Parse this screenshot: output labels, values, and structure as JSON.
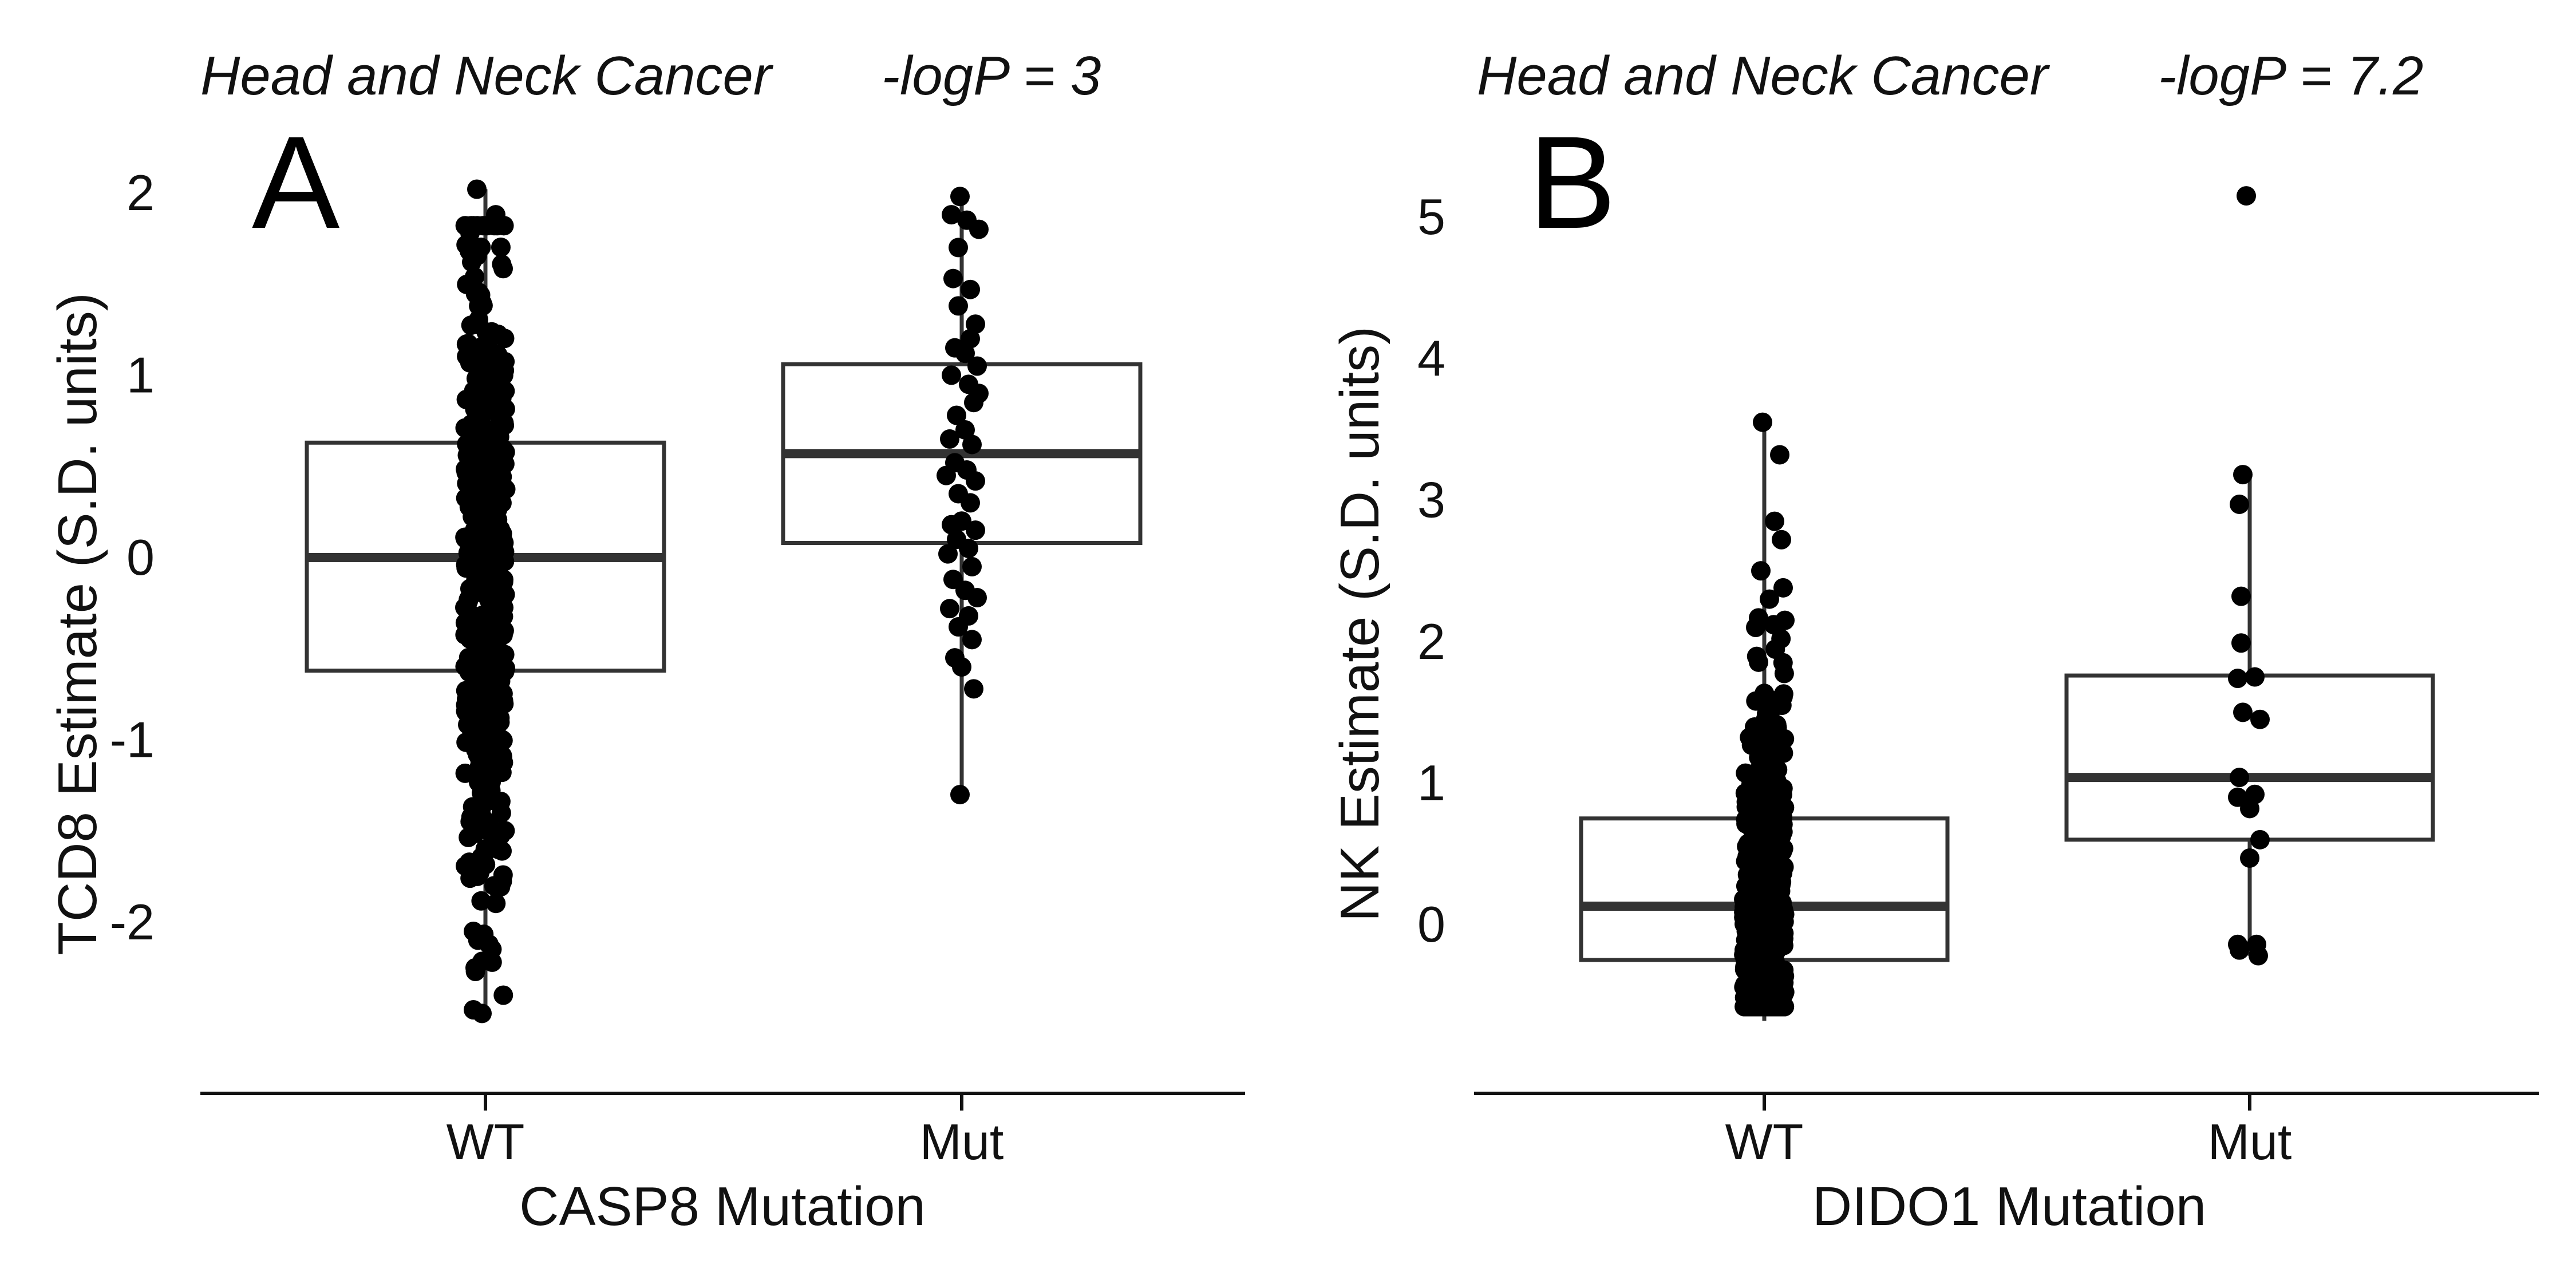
{
  "chart_data": [
    {
      "type": "box",
      "panel_label": "A",
      "title": "Head and Neck Cancer",
      "stat_label": "-logP = 3",
      "xlabel": "CASP8 Mutation",
      "ylabel": "TCD8 Estimate (S.D. units)",
      "categories": [
        "WT",
        "Mut"
      ],
      "y_ticks": [
        -2,
        -1,
        0,
        1,
        2
      ],
      "ylim": [
        -2.75,
        2.1
      ],
      "groups": [
        {
          "name": "WT",
          "box": {
            "whisker_low": -2.5,
            "q1": -0.62,
            "median": 0.0,
            "q3": 0.63,
            "whisker_high": 2.02
          },
          "n_points": 480,
          "extreme_points": [
            [
              -0.05,
              2.02
            ],
            [
              0.06,
              1.88
            ],
            [
              -0.09,
              1.78
            ],
            [
              -0.08,
              1.62
            ],
            [
              0.05,
              -1.8
            ],
            [
              -0.07,
              -2.05
            ],
            [
              0.02,
              -2.12
            ],
            [
              -0.06,
              -2.25
            ],
            [
              -0.07,
              -2.48
            ],
            [
              -0.02,
              -2.5
            ]
          ]
        },
        {
          "name": "Mut",
          "box": {
            "whisker_low": -1.3,
            "q1": 0.08,
            "median": 0.57,
            "q3": 1.06,
            "whisker_high": 1.98
          },
          "points": [
            [
              -0.01,
              1.98
            ],
            [
              -0.06,
              1.88
            ],
            [
              0.03,
              1.85
            ],
            [
              0.1,
              1.8
            ],
            [
              -0.02,
              1.7
            ],
            [
              -0.05,
              1.53
            ],
            [
              0.05,
              1.47
            ],
            [
              -0.02,
              1.38
            ],
            [
              0.08,
              1.28
            ],
            [
              0.05,
              1.2
            ],
            [
              -0.04,
              1.15
            ],
            [
              0.02,
              1.12
            ],
            [
              0.09,
              1.05
            ],
            [
              -0.06,
              1.0
            ],
            [
              0.04,
              0.95
            ],
            [
              0.1,
              0.9
            ],
            [
              0.07,
              0.85
            ],
            [
              -0.03,
              0.78
            ],
            [
              0.02,
              0.7
            ],
            [
              -0.07,
              0.65
            ],
            [
              0.06,
              0.62
            ],
            [
              -0.04,
              0.52
            ],
            [
              0.03,
              0.48
            ],
            [
              -0.09,
              0.45
            ],
            [
              0.08,
              0.42
            ],
            [
              -0.02,
              0.35
            ],
            [
              0.05,
              0.3
            ],
            [
              0.0,
              0.2
            ],
            [
              -0.06,
              0.18
            ],
            [
              0.08,
              0.15
            ],
            [
              -0.03,
              0.1
            ],
            [
              0.04,
              0.05
            ],
            [
              -0.08,
              0.02
            ],
            [
              0.06,
              -0.05
            ],
            [
              -0.05,
              -0.12
            ],
            [
              0.02,
              -0.18
            ],
            [
              0.09,
              -0.22
            ],
            [
              -0.07,
              -0.28
            ],
            [
              0.04,
              -0.32
            ],
            [
              -0.02,
              -0.38
            ],
            [
              0.06,
              -0.45
            ],
            [
              -0.04,
              -0.55
            ],
            [
              0.0,
              -0.6
            ],
            [
              0.07,
              -0.72
            ],
            [
              -0.01,
              -1.3
            ]
          ]
        }
      ]
    },
    {
      "type": "box",
      "panel_label": "B",
      "title": "Head and Neck Cancer",
      "stat_label": "-logP = 7.2",
      "xlabel": "DIDO1 Mutation",
      "ylabel": "NK Estimate (S.D. units)",
      "categories": [
        "WT",
        "Mut"
      ],
      "y_ticks": [
        0,
        1,
        2,
        3,
        4,
        5
      ],
      "ylim": [
        -0.95,
        5.3
      ],
      "groups": [
        {
          "name": "WT",
          "box": {
            "whisker_low": -0.68,
            "q1": -0.25,
            "median": 0.13,
            "q3": 0.75,
            "whisker_high": 3.55
          },
          "n_points": 480,
          "extreme_points": [
            [
              -0.01,
              3.55
            ],
            [
              0.09,
              3.32
            ],
            [
              0.06,
              2.85
            ],
            [
              0.1,
              2.72
            ],
            [
              -0.02,
              2.5
            ],
            [
              0.11,
              2.38
            ],
            [
              0.03,
              2.3
            ],
            [
              0.12,
              2.15
            ],
            [
              -0.05,
              2.1
            ]
          ]
        },
        {
          "name": "Mut",
          "box": {
            "whisker_low": -0.22,
            "q1": 0.6,
            "median": 1.04,
            "q3": 1.76,
            "whisker_high": 3.18
          },
          "points": [
            [
              -0.02,
              5.15
            ],
            [
              -0.04,
              3.18
            ],
            [
              -0.06,
              2.97
            ],
            [
              -0.05,
              2.32
            ],
            [
              -0.05,
              1.99
            ],
            [
              -0.07,
              1.74
            ],
            [
              0.03,
              1.75
            ],
            [
              -0.04,
              1.5
            ],
            [
              0.06,
              1.45
            ],
            [
              -0.06,
              1.04
            ],
            [
              -0.07,
              0.9
            ],
            [
              0.03,
              0.92
            ],
            [
              0.0,
              0.82
            ],
            [
              0.06,
              0.6
            ],
            [
              0.0,
              0.47
            ],
            [
              -0.07,
              -0.14
            ],
            [
              0.04,
              -0.14
            ],
            [
              -0.06,
              -0.18
            ],
            [
              0.05,
              -0.22
            ]
          ]
        }
      ]
    }
  ]
}
